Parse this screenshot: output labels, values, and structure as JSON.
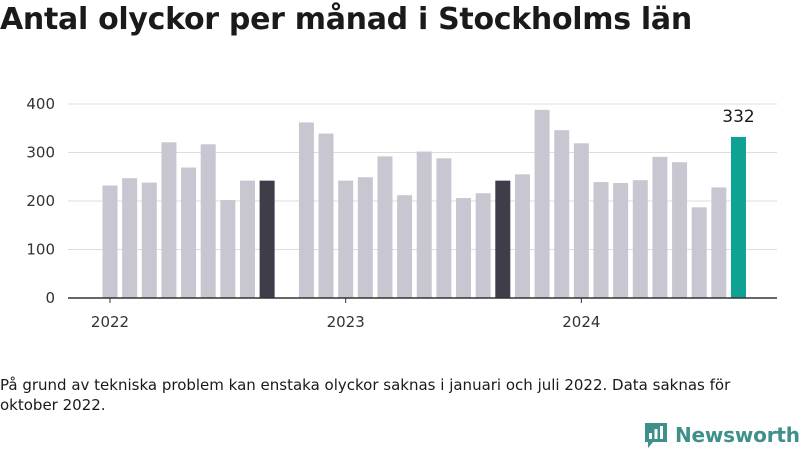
{
  "title": "Antal olyckor per månad i Stockholms län",
  "note": "På grund av tekniska problem kan enstaka olyckor saknas i januari och juli 2022. Data saknas för oktober 2022.",
  "brand": {
    "name": "Newsworthy",
    "icon": "newsworthy-logo-icon",
    "color": "#3f8f8a"
  },
  "colors": {
    "default": "#c8c6d0",
    "highlight": "#3f3d4a",
    "latest": "#0ea294",
    "axis": "#333333",
    "grid": "#dddddd"
  },
  "chart_data": {
    "type": "bar",
    "title": "Antal olyckor per månad i Stockholms län",
    "xlabel": "",
    "ylabel": "",
    "ylim": [
      0,
      400
    ],
    "y_ticks": [
      0,
      100,
      200,
      300,
      400
    ],
    "x_tick_labels": [
      "2022",
      "2023",
      "2024"
    ],
    "grid": true,
    "categories": [
      "2022-01",
      "2022-02",
      "2022-03",
      "2022-04",
      "2022-05",
      "2022-06",
      "2022-07",
      "2022-08",
      "2022-09",
      "2022-10",
      "2022-11",
      "2022-12",
      "2023-01",
      "2023-02",
      "2023-03",
      "2023-04",
      "2023-05",
      "2023-06",
      "2023-07",
      "2023-08",
      "2023-09",
      "2023-10",
      "2023-11",
      "2023-12",
      "2024-01",
      "2024-02",
      "2024-03",
      "2024-04",
      "2024-05",
      "2024-06",
      "2024-07",
      "2024-08",
      "2024-09"
    ],
    "values": [
      232,
      247,
      238,
      321,
      269,
      317,
      202,
      242,
      242,
      null,
      362,
      339,
      242,
      249,
      292,
      212,
      302,
      288,
      206,
      216,
      242,
      255,
      388,
      346,
      319,
      239,
      237,
      243,
      291,
      280,
      187,
      228,
      332
    ],
    "highlighted": [
      "2022-09",
      "2023-09"
    ],
    "latest": "2024-09",
    "data_labels": [
      {
        "category": "2024-09",
        "text": "332"
      }
    ]
  }
}
